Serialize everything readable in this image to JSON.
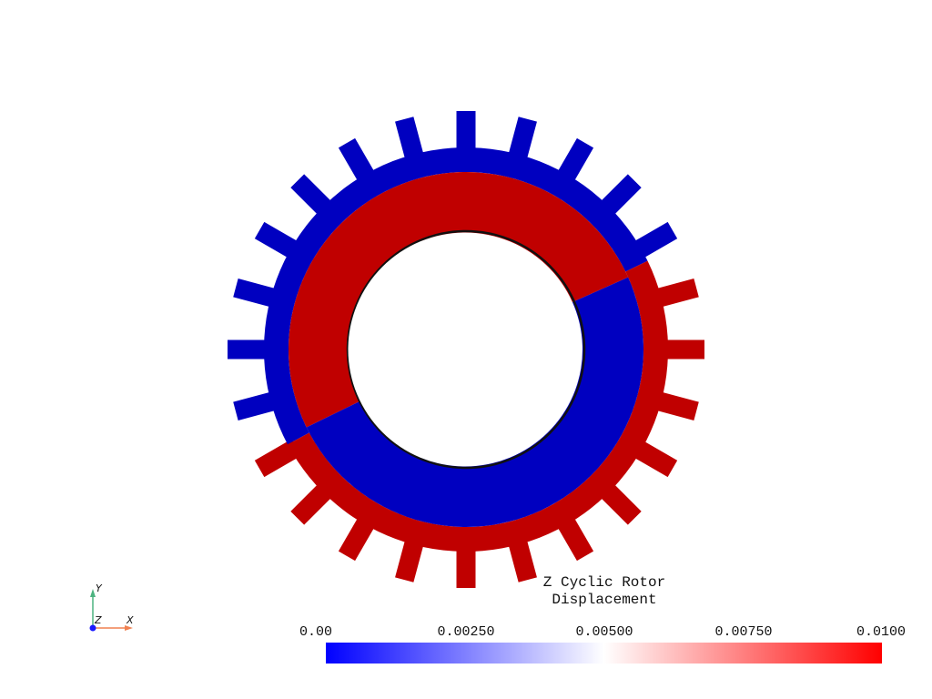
{
  "scalar_bar": {
    "title_line1": "Z Cyclic Rotor",
    "title_line2": "Displacement",
    "ticks": [
      "0.00",
      "0.00250",
      "0.00500",
      "0.00750",
      "0.0100"
    ],
    "range": [
      0.0,
      0.01
    ],
    "colormap": [
      "#0000ff",
      "#ffffff",
      "#ff0000"
    ]
  },
  "colors": {
    "low": "#0000c0",
    "high": "#c00000",
    "background": "#ffffff"
  },
  "rotor": {
    "teeth_count": 24
  },
  "axes": {
    "y_label": "Y",
    "z_label": "Z",
    "x_label": "X",
    "y_color": "#4db380",
    "x_color": "#f08050",
    "origin_color": "#1a1aff"
  }
}
